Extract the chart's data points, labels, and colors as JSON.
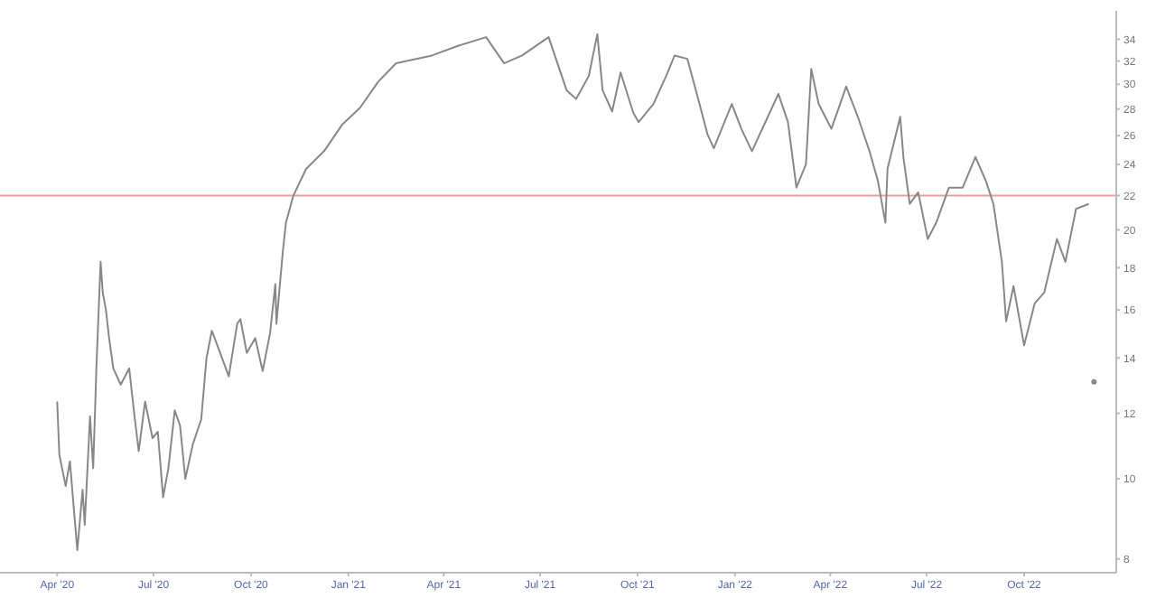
{
  "chart_data": {
    "type": "line",
    "log": true,
    "grid": false,
    "legend": false,
    "marker": "none",
    "line_style": "solid",
    "xlim": [
      "2020-02-07",
      "2022-12-27"
    ],
    "xticks": [
      {
        "value": "2020-04-01",
        "label": "Apr '20"
      },
      {
        "value": "2020-07-01",
        "label": "Jul '20"
      },
      {
        "value": "2020-10-01",
        "label": "Oct '20"
      },
      {
        "value": "2021-01-01",
        "label": "Jan '21"
      },
      {
        "value": "2021-04-01",
        "label": "Apr '21"
      },
      {
        "value": "2021-07-01",
        "label": "Jul '21"
      },
      {
        "value": "2021-10-01",
        "label": "Oct '21"
      },
      {
        "value": "2022-01-01",
        "label": "Jan '22"
      },
      {
        "value": "2022-04-01",
        "label": "Apr '22"
      },
      {
        "value": "2022-07-01",
        "label": "Jul '22"
      },
      {
        "value": "2022-10-01",
        "label": "Oct '22"
      }
    ],
    "ylim": [
      7.7,
      36.8
    ],
    "yticks": [
      8,
      10,
      12,
      14,
      16,
      18,
      20,
      22,
      24,
      26,
      28,
      30,
      32,
      34
    ],
    "ref_lines": [
      {
        "axis": "y",
        "value": 22,
        "color": "#e8a0a0"
      }
    ],
    "x": [
      "2020-04-01",
      "2020-04-03",
      "2020-04-09",
      "2020-04-13",
      "2020-04-18",
      "2020-04-20",
      "2020-04-25",
      "2020-04-27",
      "2020-05-02",
      "2020-05-05",
      "2020-05-08",
      "2020-05-12",
      "2020-05-14",
      "2020-05-17",
      "2020-05-20",
      "2020-05-24",
      "2020-05-31",
      "2020-06-08",
      "2020-06-13",
      "2020-06-17",
      "2020-06-23",
      "2020-06-30",
      "2020-07-05",
      "2020-07-10",
      "2020-07-15",
      "2020-07-21",
      "2020-07-26",
      "2020-07-31",
      "2020-08-07",
      "2020-08-15",
      "2020-08-20",
      "2020-08-25",
      "2020-09-01",
      "2020-09-10",
      "2020-09-18",
      "2020-09-21",
      "2020-09-27",
      "2020-10-05",
      "2020-10-12",
      "2020-10-19",
      "2020-10-24",
      "2020-10-25",
      "2020-10-31",
      "2020-11-03",
      "2020-11-10",
      "2020-11-22",
      "2020-12-09",
      "2020-12-26",
      "2021-01-12",
      "2021-01-29",
      "2021-02-15",
      "2021-03-21",
      "2021-04-15",
      "2021-05-11",
      "2021-05-28",
      "2021-06-14",
      "2021-07-09",
      "2021-07-26",
      "2021-08-04",
      "2021-08-16",
      "2021-08-24",
      "2021-08-29",
      "2021-09-07",
      "2021-09-15",
      "2021-09-27",
      "2021-10-02",
      "2021-10-16",
      "2021-10-28",
      "2021-11-05",
      "2021-11-17",
      "2021-11-26",
      "2021-12-06",
      "2021-12-12",
      "2021-12-29",
      "2022-01-07",
      "2022-01-17",
      "2022-02-01",
      "2022-02-11",
      "2022-02-20",
      "2022-02-28",
      "2022-03-09",
      "2022-03-14",
      "2022-03-21",
      "2022-04-02",
      "2022-04-16",
      "2022-04-27",
      "2022-05-08",
      "2022-05-16",
      "2022-05-23",
      "2022-05-25",
      "2022-06-06",
      "2022-06-09",
      "2022-06-15",
      "2022-06-23",
      "2022-07-02",
      "2022-07-10",
      "2022-07-22",
      "2022-08-04",
      "2022-08-16",
      "2022-08-26",
      "2022-09-02",
      "2022-09-10",
      "2022-09-14",
      "2022-09-21",
      "2022-10-01",
      "2022-10-11",
      "2022-10-20",
      "2022-11-01",
      "2022-11-09",
      "2022-11-19",
      "2022-12-01",
      "2022-12-04",
      "2022-12-06"
    ],
    "series": [
      {
        "color": "#888888",
        "values": [
          12.4,
          10.7,
          9.8,
          10.5,
          8.8,
          8.2,
          9.7,
          8.8,
          11.9,
          10.3,
          13.6,
          18.3,
          16.8,
          16.0,
          14.8,
          13.6,
          13.0,
          13.6,
          11.9,
          10.8,
          12.4,
          11.2,
          11.4,
          9.5,
          10.3,
          12.1,
          11.6,
          10.0,
          11.0,
          11.8,
          14.0,
          15.1,
          14.3,
          13.3,
          15.4,
          15.6,
          14.2,
          14.8,
          13.5,
          15.0,
          17.2,
          15.4,
          18.8,
          20.4,
          22.0,
          23.7,
          24.9,
          26.8,
          28.1,
          30.2,
          31.8,
          32.5,
          33.4,
          34.2,
          31.8,
          32.5,
          34.2,
          29.5,
          28.8,
          30.7,
          34.5,
          29.5,
          27.8,
          31.0,
          27.7,
          27.0,
          28.4,
          30.7,
          32.5,
          32.2,
          29.2,
          26.1,
          25.1,
          28.4,
          26.5,
          24.9,
          27.4,
          29.2,
          27.0,
          22.5,
          24.0,
          31.3,
          28.4,
          26.5,
          29.8,
          27.4,
          24.9,
          22.9,
          20.4,
          23.7,
          27.4,
          24.5,
          21.5,
          22.2,
          19.5,
          20.4,
          22.5,
          22.5,
          24.5,
          22.9,
          21.5,
          18.3,
          15.5,
          17.1,
          14.5,
          16.3,
          16.8,
          19.5,
          18.3,
          21.2,
          21.5,
          null,
          13.1
        ]
      }
    ]
  }
}
